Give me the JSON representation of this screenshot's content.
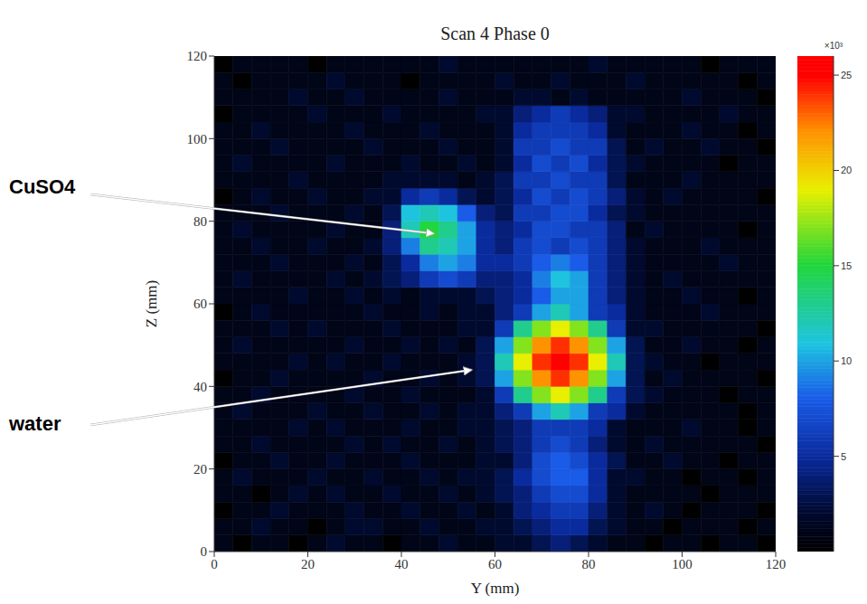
{
  "chart_data": {
    "type": "heatmap",
    "title": "Scan 4 Phase 0",
    "x_label": "Y (mm)",
    "y_label": "Z (mm)",
    "xlim": [
      0,
      120
    ],
    "ylim": [
      0,
      120
    ],
    "xticks": [
      0,
      20,
      40,
      60,
      80,
      100,
      120
    ],
    "yticks": [
      0,
      20,
      40,
      60,
      80,
      100,
      120
    ],
    "x_edges": [
      0,
      4,
      8,
      12,
      16,
      20,
      24,
      28,
      32,
      36,
      40,
      44,
      48,
      52,
      56,
      60,
      64,
      68,
      72,
      76,
      80,
      84,
      88,
      92,
      96,
      100,
      104,
      108,
      112,
      116,
      120
    ],
    "y_edges": [
      0,
      4,
      8,
      12,
      16,
      20,
      24,
      28,
      32,
      36,
      40,
      44,
      48,
      52,
      56,
      60,
      64,
      68,
      72,
      76,
      80,
      84,
      88,
      92,
      96,
      100,
      104,
      108,
      112,
      116,
      120
    ],
    "cells": [
      [
        1,
        0,
        1,
        1,
        0,
        1,
        2,
        1,
        1,
        0,
        1,
        1,
        2,
        1,
        1,
        2,
        2,
        3,
        4,
        3,
        2,
        1,
        1,
        0,
        1,
        1,
        0,
        1,
        1,
        0
      ],
      [
        1,
        1,
        2,
        1,
        1,
        0,
        1,
        2,
        2,
        1,
        1,
        2,
        1,
        1,
        2,
        2,
        3,
        4,
        5,
        5,
        3,
        2,
        1,
        1,
        0,
        1,
        1,
        1,
        0,
        1
      ],
      [
        0,
        1,
        1,
        2,
        1,
        1,
        1,
        2,
        1,
        1,
        2,
        1,
        1,
        2,
        1,
        2,
        4,
        5,
        6,
        6,
        4,
        2,
        1,
        2,
        1,
        0,
        1,
        1,
        1,
        0
      ],
      [
        1,
        1,
        0,
        1,
        2,
        1,
        2,
        1,
        1,
        2,
        1,
        1,
        2,
        1,
        2,
        3,
        4,
        6,
        7,
        7,
        5,
        2,
        1,
        1,
        1,
        1,
        0,
        1,
        1,
        1
      ],
      [
        1,
        2,
        1,
        1,
        1,
        2,
        1,
        1,
        2,
        1,
        1,
        2,
        1,
        2,
        2,
        3,
        5,
        7,
        8,
        8,
        5,
        2,
        2,
        1,
        1,
        0,
        1,
        1,
        0,
        1
      ],
      [
        0,
        1,
        1,
        2,
        1,
        1,
        2,
        1,
        1,
        1,
        2,
        1,
        1,
        1,
        2,
        2,
        4,
        7,
        8,
        7,
        5,
        3,
        1,
        1,
        2,
        1,
        1,
        0,
        1,
        1
      ],
      [
        1,
        1,
        2,
        1,
        1,
        1,
        1,
        2,
        1,
        2,
        1,
        1,
        2,
        1,
        2,
        3,
        4,
        6,
        7,
        6,
        4,
        2,
        1,
        2,
        1,
        1,
        1,
        1,
        1,
        0
      ],
      [
        1,
        1,
        1,
        1,
        2,
        1,
        2,
        1,
        1,
        1,
        2,
        1,
        1,
        2,
        2,
        3,
        4,
        6,
        6,
        6,
        5,
        2,
        1,
        1,
        1,
        2,
        1,
        1,
        0,
        1
      ],
      [
        1,
        2,
        1,
        1,
        1,
        2,
        1,
        1,
        2,
        1,
        1,
        2,
        1,
        2,
        2,
        4,
        6,
        10,
        12,
        10,
        6,
        5,
        2,
        1,
        1,
        1,
        1,
        1,
        0,
        1
      ],
      [
        1,
        1,
        2,
        1,
        1,
        1,
        1,
        2,
        1,
        1,
        2,
        1,
        1,
        1,
        2,
        6,
        13,
        17,
        19,
        17,
        13,
        6,
        3,
        2,
        1,
        1,
        1,
        0,
        1,
        1
      ],
      [
        0,
        1,
        1,
        2,
        1,
        1,
        1,
        1,
        2,
        1,
        1,
        2,
        1,
        2,
        3,
        10,
        17,
        22,
        24,
        22,
        17,
        10,
        3,
        1,
        2,
        1,
        1,
        1,
        1,
        0
      ],
      [
        1,
        1,
        1,
        1,
        2,
        1,
        2,
        1,
        1,
        2,
        1,
        1,
        1,
        2,
        3,
        12,
        19,
        24,
        26,
        24,
        19,
        12,
        3,
        2,
        1,
        1,
        0,
        1,
        1,
        1
      ],
      [
        1,
        2,
        1,
        1,
        1,
        1,
        1,
        2,
        1,
        1,
        2,
        1,
        2,
        1,
        3,
        10,
        17,
        22,
        24,
        22,
        17,
        10,
        3,
        1,
        1,
        2,
        1,
        1,
        0,
        1
      ],
      [
        1,
        1,
        1,
        2,
        1,
        2,
        1,
        1,
        1,
        2,
        1,
        1,
        1,
        2,
        2,
        6,
        13,
        17,
        19,
        17,
        13,
        6,
        2,
        2,
        1,
        1,
        1,
        1,
        1,
        0
      ],
      [
        0,
        1,
        2,
        1,
        1,
        1,
        1,
        1,
        2,
        1,
        1,
        2,
        1,
        2,
        2,
        4,
        6,
        10,
        12,
        10,
        6,
        5,
        2,
        1,
        1,
        1,
        2,
        1,
        1,
        1
      ],
      [
        1,
        1,
        1,
        1,
        2,
        1,
        1,
        2,
        1,
        2,
        1,
        2,
        2,
        2,
        3,
        4,
        5,
        8,
        10,
        10,
        6,
        4,
        2,
        1,
        1,
        2,
        1,
        1,
        0,
        1
      ],
      [
        1,
        2,
        1,
        1,
        1,
        1,
        2,
        1,
        2,
        3,
        4,
        6,
        7,
        6,
        4,
        4,
        5,
        9,
        11,
        10,
        6,
        4,
        2,
        1,
        2,
        1,
        1,
        1,
        1,
        1
      ],
      [
        1,
        1,
        1,
        2,
        1,
        1,
        1,
        2,
        1,
        3,
        5,
        9,
        10,
        9,
        5,
        5,
        6,
        8,
        9,
        8,
        6,
        4,
        2,
        1,
        1,
        1,
        1,
        2,
        1,
        1
      ],
      [
        1,
        1,
        2,
        1,
        1,
        2,
        1,
        1,
        2,
        4,
        9,
        13,
        12,
        10,
        5,
        4,
        6,
        7,
        6,
        7,
        6,
        4,
        2,
        1,
        1,
        1,
        2,
        1,
        1,
        1
      ],
      [
        1,
        2,
        1,
        1,
        1,
        1,
        2,
        1,
        1,
        4,
        12,
        15,
        13,
        10,
        5,
        4,
        5,
        7,
        7,
        6,
        6,
        4,
        1,
        2,
        1,
        1,
        1,
        1,
        0,
        1
      ],
      [
        1,
        1,
        1,
        2,
        1,
        1,
        1,
        2,
        1,
        3,
        11,
        12,
        11,
        8,
        4,
        3,
        6,
        6,
        7,
        7,
        5,
        3,
        2,
        1,
        1,
        1,
        1,
        1,
        1,
        1
      ],
      [
        0,
        1,
        2,
        1,
        1,
        2,
        1,
        1,
        2,
        2,
        5,
        6,
        5,
        3,
        2,
        3,
        5,
        7,
        6,
        7,
        6,
        4,
        2,
        1,
        2,
        1,
        1,
        1,
        1,
        0
      ],
      [
        1,
        1,
        1,
        1,
        2,
        1,
        1,
        1,
        1,
        2,
        2,
        2,
        2,
        1,
        2,
        3,
        6,
        6,
        7,
        6,
        6,
        3,
        1,
        1,
        1,
        2,
        1,
        1,
        1,
        1
      ],
      [
        1,
        2,
        1,
        1,
        1,
        1,
        2,
        1,
        1,
        1,
        2,
        1,
        1,
        2,
        1,
        2,
        5,
        7,
        6,
        7,
        5,
        3,
        2,
        1,
        1,
        1,
        1,
        0,
        1,
        1
      ],
      [
        1,
        1,
        1,
        2,
        1,
        1,
        1,
        1,
        2,
        1,
        1,
        1,
        2,
        1,
        1,
        2,
        6,
        6,
        7,
        6,
        6,
        3,
        1,
        2,
        1,
        1,
        2,
        1,
        1,
        0
      ],
      [
        1,
        1,
        2,
        1,
        1,
        1,
        1,
        2,
        1,
        1,
        1,
        2,
        1,
        1,
        1,
        2,
        5,
        6,
        6,
        6,
        5,
        2,
        1,
        1,
        1,
        2,
        1,
        1,
        0,
        1
      ],
      [
        0,
        1,
        1,
        1,
        1,
        2,
        1,
        1,
        1,
        2,
        1,
        1,
        1,
        1,
        2,
        2,
        4,
        5,
        6,
        5,
        4,
        2,
        2,
        1,
        1,
        1,
        1,
        2,
        1,
        1
      ],
      [
        1,
        1,
        1,
        1,
        2,
        1,
        1,
        2,
        1,
        1,
        1,
        1,
        2,
        1,
        1,
        1,
        2,
        2,
        1,
        2,
        1,
        1,
        1,
        1,
        1,
        2,
        1,
        1,
        1,
        0
      ],
      [
        1,
        0,
        1,
        1,
        1,
        1,
        2,
        1,
        1,
        1,
        0,
        1,
        1,
        1,
        1,
        2,
        1,
        1,
        2,
        1,
        1,
        1,
        2,
        1,
        1,
        1,
        1,
        1,
        0,
        1
      ],
      [
        0,
        1,
        1,
        1,
        1,
        0,
        1,
        1,
        1,
        1,
        1,
        1,
        2,
        1,
        1,
        1,
        1,
        1,
        1,
        1,
        2,
        1,
        1,
        1,
        1,
        1,
        0,
        1,
        1,
        1
      ]
    ],
    "colorbar": {
      "range": [
        0,
        26
      ],
      "ticks": [
        5,
        10,
        15,
        20,
        25
      ],
      "label": "×10³"
    },
    "annotations": [
      {
        "text": "CuSO4",
        "x": 47,
        "y": 77
      },
      {
        "text": "water",
        "x": 55,
        "y": 44
      }
    ]
  }
}
